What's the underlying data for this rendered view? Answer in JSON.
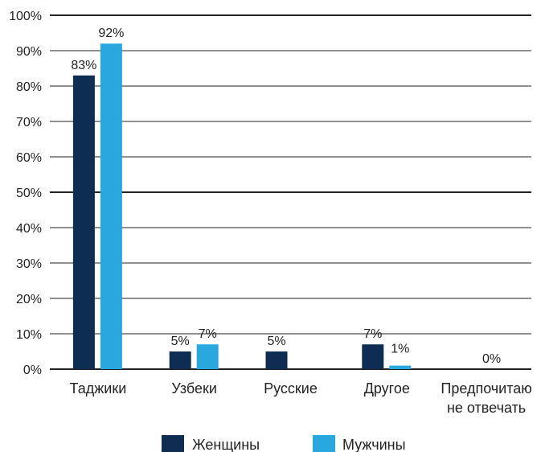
{
  "chart_data": {
    "type": "bar",
    "categories": [
      "Таджики",
      "Узбеки",
      "Русские",
      "Другое",
      "Предпочитаю не отвечать"
    ],
    "category_lines": [
      [
        "Таджики"
      ],
      [
        "Узбеки"
      ],
      [
        "Русские"
      ],
      [
        "Другое"
      ],
      [
        "Предпочитаю",
        "не отвечать"
      ]
    ],
    "series": [
      {
        "name": "Женщины",
        "values": [
          83,
          5,
          5,
          7,
          null
        ],
        "labels": [
          "83%",
          "5%",
          "5%",
          "7%",
          ""
        ],
        "color": "#0f2d52"
      },
      {
        "name": "Мужчины",
        "values": [
          92,
          7,
          0,
          1,
          0
        ],
        "labels": [
          "92%",
          "7%",
          "",
          "1%",
          "0%"
        ],
        "color": "#29a8e0"
      }
    ],
    "yticks": [
      "0%",
      "10%",
      "20%",
      "30%",
      "40%",
      "50%",
      "60%",
      "70%",
      "80%",
      "90%",
      "100%"
    ],
    "ylim": [
      0,
      100
    ],
    "grid": true,
    "legend_position": "bottom"
  }
}
